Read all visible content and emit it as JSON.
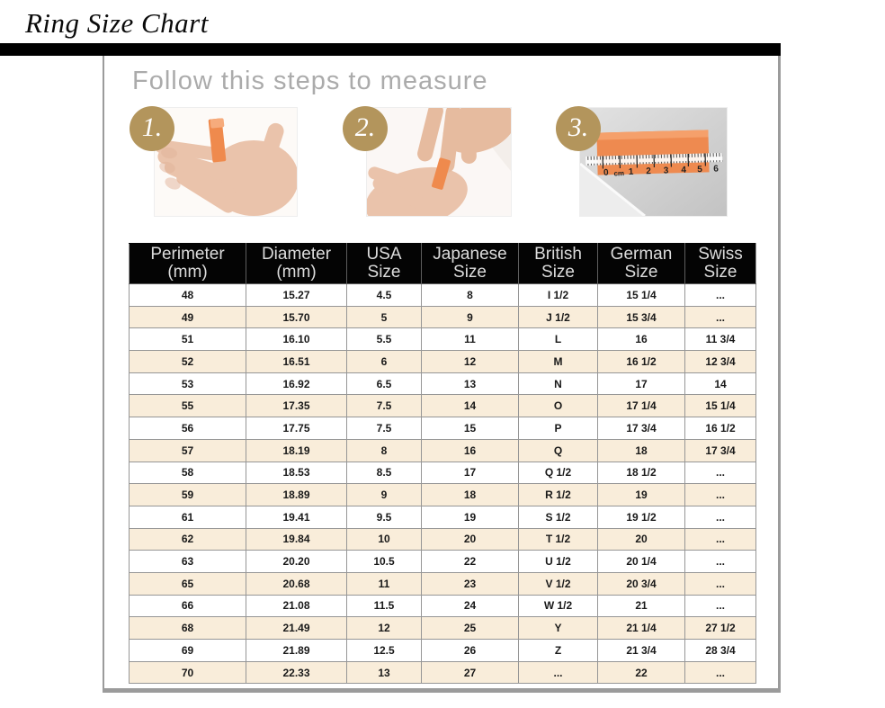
{
  "title": "Ring Size Chart",
  "steps": {
    "heading": "Follow this steps to measure",
    "numbers": [
      "1.",
      "2.",
      "3."
    ],
    "ruler_labels": [
      "0",
      "cm",
      "1",
      "2",
      "3",
      "4",
      "5",
      "6"
    ]
  },
  "chart_data": {
    "type": "table",
    "title": "Ring Size Chart",
    "columns": [
      {
        "line1": "Perimeter",
        "line2": "(mm)"
      },
      {
        "line1": "Diameter",
        "line2": "(mm)"
      },
      {
        "line1": "USA",
        "line2": "Size"
      },
      {
        "line1": "Japanese",
        "line2": "Size"
      },
      {
        "line1": "British",
        "line2": "Size"
      },
      {
        "line1": "German",
        "line2": "Size"
      },
      {
        "line1": "Swiss",
        "line2": "Size"
      }
    ],
    "rows": [
      [
        "48",
        "15.27",
        "4.5",
        "8",
        "I 1/2",
        "15 1/4",
        "..."
      ],
      [
        "49",
        "15.70",
        "5",
        "9",
        "J 1/2",
        "15 3/4",
        "..."
      ],
      [
        "51",
        "16.10",
        "5.5",
        "11",
        "L",
        "16",
        "11 3/4"
      ],
      [
        "52",
        "16.51",
        "6",
        "12",
        "M",
        "16 1/2",
        "12 3/4"
      ],
      [
        "53",
        "16.92",
        "6.5",
        "13",
        "N",
        "17",
        "14"
      ],
      [
        "55",
        "17.35",
        "7.5",
        "14",
        "O",
        "17 1/4",
        "15 1/4"
      ],
      [
        "56",
        "17.75",
        "7.5",
        "15",
        "P",
        "17 3/4",
        "16 1/2"
      ],
      [
        "57",
        "18.19",
        "8",
        "16",
        "Q",
        "18",
        "17 3/4"
      ],
      [
        "58",
        "18.53",
        "8.5",
        "17",
        "Q 1/2",
        "18 1/2",
        "..."
      ],
      [
        "59",
        "18.89",
        "9",
        "18",
        "R 1/2",
        "19",
        "..."
      ],
      [
        "61",
        "19.41",
        "9.5",
        "19",
        "S 1/2",
        "19 1/2",
        "..."
      ],
      [
        "62",
        "19.84",
        "10",
        "20",
        "T 1/2",
        "20",
        "..."
      ],
      [
        "63",
        "20.20",
        "10.5",
        "22",
        "U 1/2",
        "20 1/4",
        "..."
      ],
      [
        "65",
        "20.68",
        "11",
        "23",
        "V 1/2",
        "20 3/4",
        "..."
      ],
      [
        "66",
        "21.08",
        "11.5",
        "24",
        "W 1/2",
        "21",
        "..."
      ],
      [
        "68",
        "21.49",
        "12",
        "25",
        "Y",
        "21 1/4",
        "27 1/2"
      ],
      [
        "69",
        "21.89",
        "12.5",
        "26",
        "Z",
        "21 3/4",
        "28 3/4"
      ],
      [
        "70",
        "22.33",
        "13",
        "27",
        "...",
        "22",
        "..."
      ]
    ]
  },
  "colors": {
    "accent_tan": "#b3955c",
    "row_cream": "#f9edda",
    "strip_orange": "#ee8a50",
    "table_border": "#969696",
    "header_bg": "#040404",
    "header_text": "#dcdcdc",
    "frame_gray": "#9b9b9b",
    "heading_gray": "#ababab"
  }
}
